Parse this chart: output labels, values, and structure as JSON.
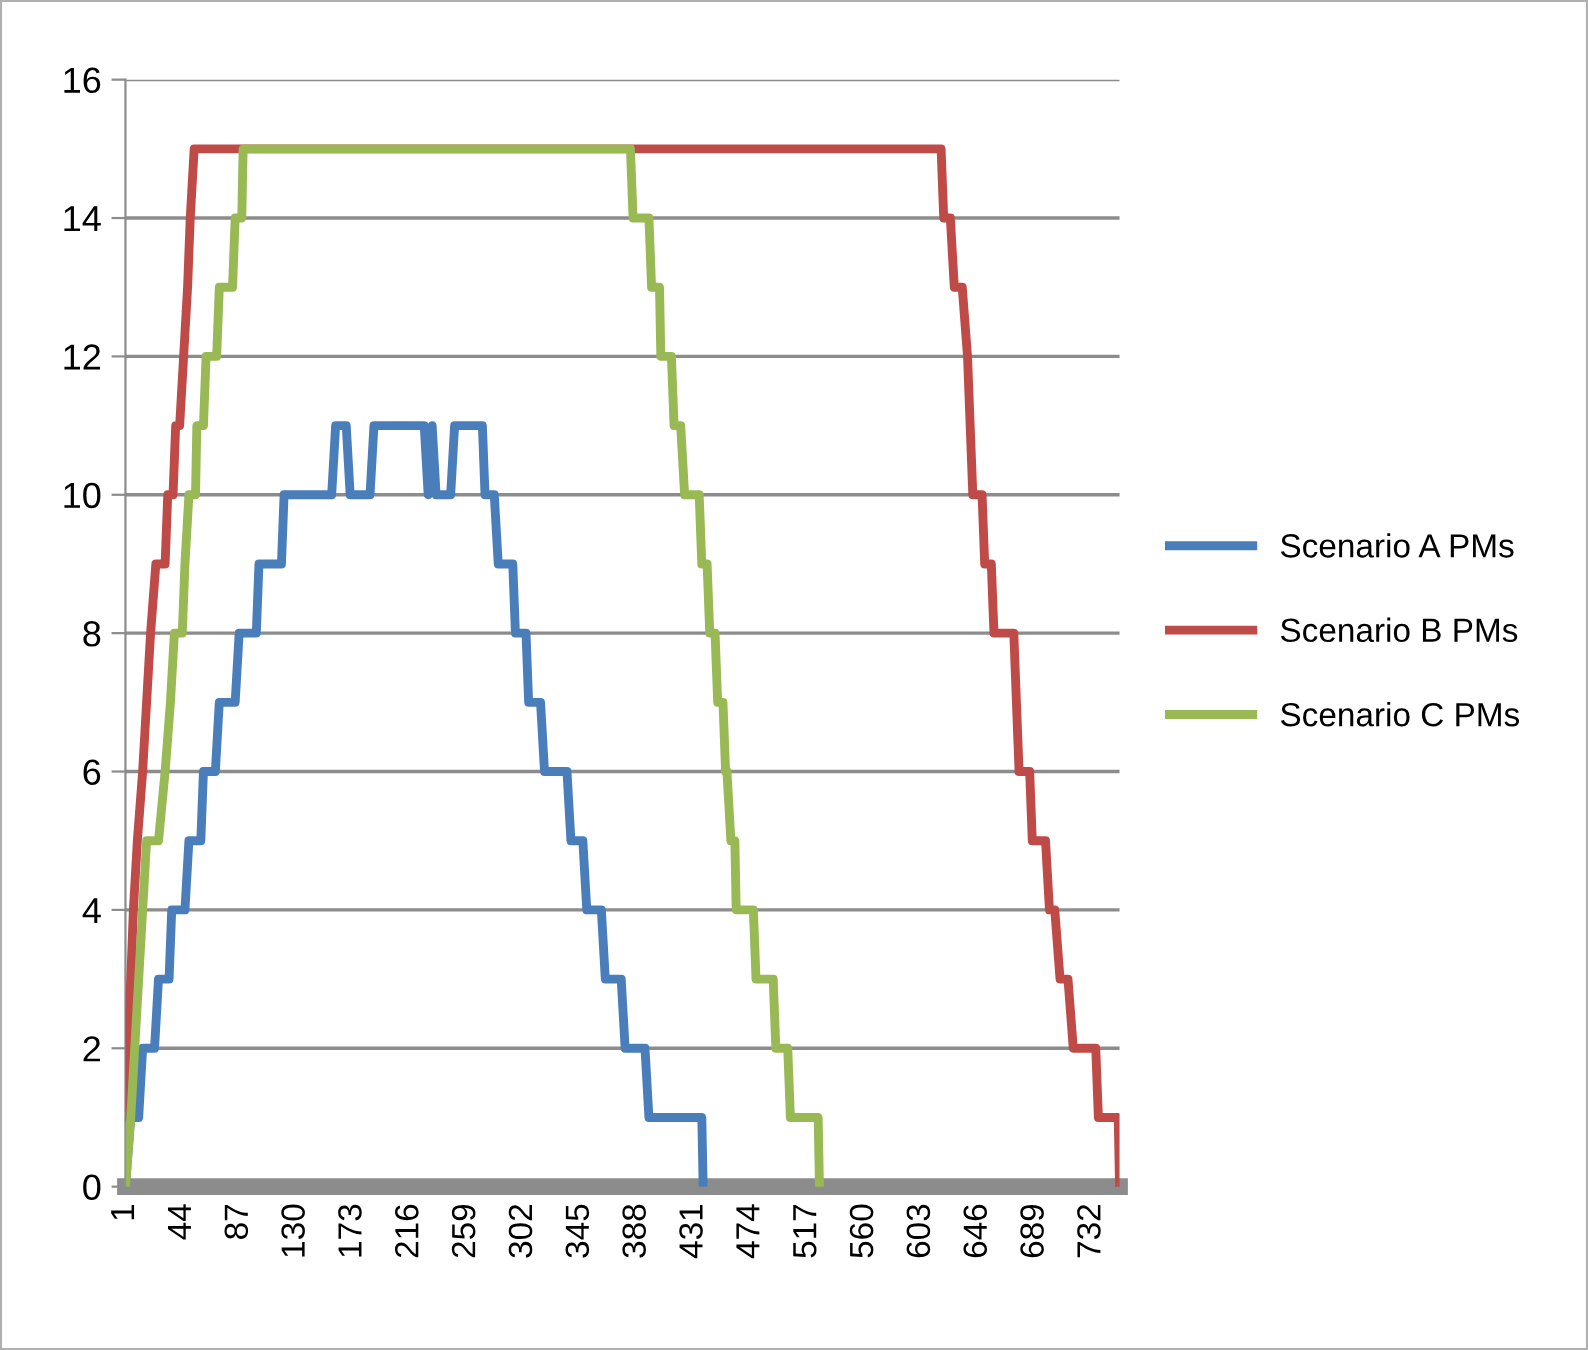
{
  "chart_data": {
    "type": "line",
    "xlim": [
      1,
      753
    ],
    "xticks": [
      1,
      44,
      87,
      130,
      173,
      216,
      259,
      302,
      345,
      388,
      431,
      474,
      517,
      560,
      603,
      646,
      689,
      732
    ],
    "ylim": [
      0,
      16
    ],
    "yticks": [
      0,
      2,
      4,
      6,
      8,
      10,
      12,
      14,
      16
    ],
    "grid": "y",
    "legend": "right",
    "marker": "none",
    "line_style": "solid",
    "series": [
      {
        "name": "Scenario A PMs",
        "color": "#4a7ebb",
        "x": [
          1,
          5,
          11,
          14,
          23,
          26,
          34,
          36,
          46,
          49,
          58,
          60,
          69,
          72,
          84,
          87,
          100,
          102,
          119,
          121,
          157,
          160,
          168,
          171,
          186,
          189,
          227,
          230,
          233,
          236,
          247,
          250,
          271,
          273,
          280,
          283,
          294,
          296,
          304,
          306,
          315,
          318,
          335,
          338,
          347,
          350,
          361,
          364,
          376,
          379,
          394,
          397,
          437,
          438
        ],
        "values": [
          0,
          1,
          1,
          2,
          2,
          3,
          3,
          4,
          4,
          5,
          5,
          6,
          6,
          7,
          7,
          8,
          8,
          9,
          9,
          10,
          10,
          11,
          11,
          10,
          10,
          11,
          11,
          10,
          11,
          10,
          10,
          11,
          11,
          10,
          10,
          9,
          9,
          8,
          8,
          7,
          7,
          6,
          6,
          5,
          5,
          4,
          4,
          3,
          3,
          2,
          2,
          1,
          1,
          0
        ]
      },
      {
        "name": "Scenario B PMs",
        "color": "#be4b48",
        "x": [
          1,
          3,
          5,
          7,
          10,
          14,
          17,
          20,
          24,
          31,
          33,
          37,
          39,
          42,
          45,
          48,
          50,
          53,
          618,
          620,
          625,
          628,
          634,
          638,
          640,
          642,
          649,
          651,
          656,
          658,
          673,
          675,
          677,
          685,
          687,
          697,
          700,
          704,
          708,
          714,
          718,
          735,
          737,
          752,
          753
        ],
        "values": [
          1,
          2,
          3,
          4,
          5,
          6,
          7,
          8,
          9,
          9,
          10,
          10,
          11,
          11,
          12,
          13,
          14,
          15,
          15,
          14,
          14,
          13,
          13,
          12,
          11,
          10,
          10,
          9,
          9,
          8,
          8,
          7,
          6,
          6,
          5,
          5,
          4,
          4,
          3,
          3,
          2,
          2,
          1,
          1,
          0
        ]
      },
      {
        "name": "Scenario C PMs",
        "color": "#98b954",
        "x": [
          1,
          5,
          11,
          14,
          17,
          26,
          31,
          35,
          38,
          44,
          46,
          49,
          54,
          55,
          60,
          62,
          70,
          72,
          82,
          84,
          89,
          90,
          383,
          385,
          397,
          399,
          405,
          406,
          414,
          416,
          421,
          424,
          435,
          437,
          441,
          443,
          447,
          449,
          453,
          455,
          456,
          459,
          462,
          463,
          476,
          478,
          491,
          493,
          502,
          504,
          525,
          526
        ],
        "values": [
          0,
          1,
          3,
          4,
          5,
          5,
          6,
          7,
          8,
          8,
          9,
          10,
          10,
          11,
          11,
          12,
          12,
          13,
          13,
          14,
          14,
          15,
          15,
          14,
          14,
          13,
          13,
          12,
          12,
          11,
          11,
          10,
          10,
          9,
          9,
          8,
          8,
          7,
          7,
          6,
          6,
          5,
          5,
          4,
          4,
          3,
          3,
          2,
          2,
          1,
          1,
          0
        ]
      }
    ]
  }
}
